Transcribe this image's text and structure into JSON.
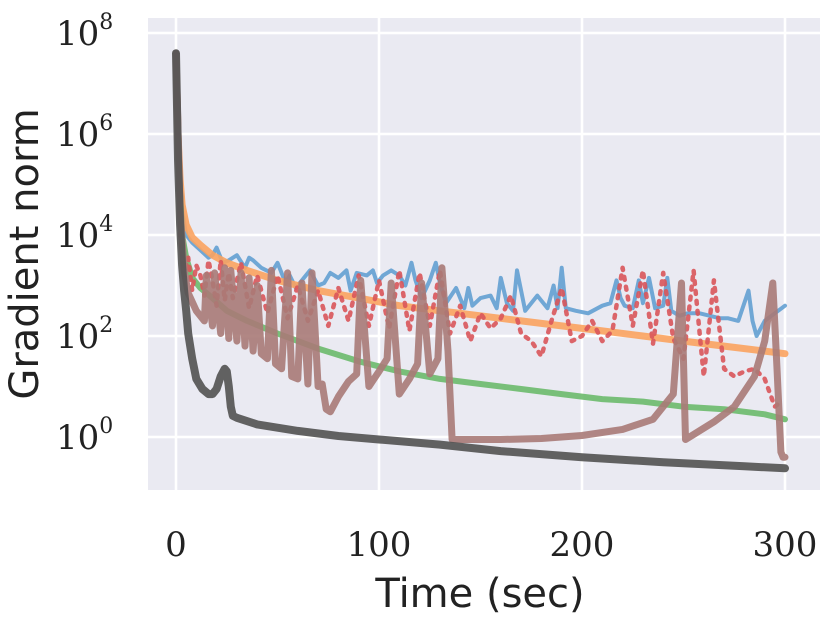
{
  "chart_data": {
    "type": "line",
    "title": "",
    "xlabel": "Time (sec)",
    "ylabel": "Gradient norm",
    "xlim": [
      -15,
      310
    ],
    "ylim_log10": [
      -1,
      8.3
    ],
    "yscale": "log",
    "grid": true,
    "background": "#eaeaf2",
    "x_ticks": [
      {
        "value": 0,
        "label": "0"
      },
      {
        "value": 100,
        "label": "100"
      },
      {
        "value": 200,
        "label": "200"
      },
      {
        "value": 300,
        "label": "300"
      }
    ],
    "y_ticks": [
      {
        "exponent": 0,
        "base": "10",
        "sup": "0"
      },
      {
        "exponent": 2,
        "base": "10",
        "sup": "2"
      },
      {
        "exponent": 4,
        "base": "10",
        "sup": "4"
      },
      {
        "exponent": 6,
        "base": "10",
        "sup": "6"
      },
      {
        "exponent": 8,
        "base": "10",
        "sup": "8"
      }
    ],
    "series": [
      {
        "name": "series-blue",
        "color": "#5b9bd0",
        "width": 4,
        "dash": "",
        "opacity": 0.85,
        "x": [
          0,
          1,
          2,
          3,
          5,
          8,
          12,
          16,
          18,
          20,
          23,
          26,
          30,
          34,
          36,
          38,
          42,
          47,
          50,
          54,
          56,
          59,
          63,
          66,
          70,
          73,
          76,
          80,
          84,
          86,
          89,
          94,
          97,
          99,
          102,
          106,
          110,
          113,
          116,
          118,
          121,
          125,
          128,
          130,
          133,
          138,
          142,
          144,
          146,
          150,
          155,
          158,
          160,
          163,
          166,
          168,
          172,
          178,
          183,
          186,
          188,
          190,
          192,
          197,
          203,
          210,
          214,
          217,
          219,
          221,
          225,
          228,
          230,
          233,
          236,
          240,
          242,
          244,
          248,
          252,
          258,
          263,
          268,
          272,
          277,
          282,
          284,
          286,
          290,
          295,
          300
        ],
        "y": [
          7.6,
          6.0,
          5.2,
          4.5,
          4.0,
          3.85,
          3.7,
          3.55,
          3.6,
          3.75,
          3.45,
          3.5,
          3.6,
          3.35,
          3.55,
          3.5,
          3.35,
          3.25,
          3.45,
          3.05,
          3.2,
          2.95,
          3.15,
          3.3,
          3.0,
          3.05,
          3.25,
          3.15,
          3.3,
          2.9,
          3.25,
          3.2,
          3.3,
          3.05,
          3.2,
          3.3,
          3.2,
          3.0,
          3.45,
          3.1,
          2.75,
          3.1,
          3.45,
          3.05,
          2.65,
          2.95,
          2.55,
          2.95,
          2.6,
          2.75,
          2.8,
          2.55,
          3.15,
          2.65,
          2.5,
          3.3,
          2.5,
          2.8,
          2.55,
          3.0,
          2.55,
          3.35,
          2.55,
          2.5,
          2.45,
          2.6,
          2.65,
          3.1,
          2.75,
          2.6,
          2.55,
          3.1,
          2.65,
          3.15,
          2.55,
          2.6,
          3.15,
          2.5,
          2.4,
          2.45,
          2.45,
          2.4,
          2.35,
          2.35,
          2.3,
          2.9,
          2.3,
          2.0,
          2.3,
          2.45,
          2.6
        ]
      },
      {
        "name": "series-orange",
        "color": "#fba35f",
        "width": 7,
        "dash": "",
        "opacity": 0.9,
        "x": [
          0,
          1,
          2,
          3,
          5,
          8,
          12,
          18,
          25,
          35,
          50,
          70,
          90,
          110,
          130,
          150,
          170,
          190,
          210,
          230,
          250,
          270,
          290,
          300
        ],
        "y": [
          7.6,
          6.0,
          5.1,
          4.6,
          4.2,
          3.95,
          3.8,
          3.6,
          3.45,
          3.3,
          3.1,
          2.9,
          2.75,
          2.6,
          2.5,
          2.4,
          2.3,
          2.2,
          2.1,
          2.0,
          1.9,
          1.8,
          1.7,
          1.65
        ]
      },
      {
        "name": "series-green",
        "color": "#6bba6b",
        "width": 6,
        "dash": "",
        "opacity": 0.9,
        "x": [
          0,
          1,
          2,
          3,
          5,
          8,
          12,
          18,
          25,
          35,
          50,
          70,
          90,
          110,
          130,
          150,
          170,
          190,
          210,
          230,
          250,
          270,
          290,
          300
        ],
        "y": [
          7.6,
          5.8,
          4.8,
          4.0,
          3.55,
          3.15,
          2.95,
          2.75,
          2.5,
          2.3,
          2.05,
          1.75,
          1.5,
          1.3,
          1.15,
          1.05,
          0.95,
          0.85,
          0.75,
          0.7,
          0.6,
          0.55,
          0.45,
          0.35
        ]
      },
      {
        "name": "series-red-dotted",
        "color": "#d9555a",
        "width": 4.5,
        "dash": "3 7",
        "opacity": 0.9,
        "x": [
          0,
          2,
          4,
          6,
          8,
          10,
          12,
          14,
          16,
          18,
          20,
          22,
          24,
          26,
          28,
          32,
          36,
          40,
          45,
          50,
          55,
          60,
          65,
          70,
          75,
          80,
          85,
          90,
          95,
          100,
          105,
          110,
          115,
          120,
          125,
          130,
          135,
          140,
          145,
          150,
          155,
          160,
          165,
          170,
          175,
          180,
          185,
          190,
          195,
          200,
          205,
          210,
          215,
          220,
          225,
          230,
          235,
          240,
          245,
          250,
          255,
          260,
          265,
          270,
          275,
          280,
          285,
          290,
          295,
          298
        ],
        "y": [
          7.6,
          4.0,
          3.2,
          3.55,
          2.9,
          3.4,
          3.2,
          2.8,
          3.5,
          3.1,
          2.6,
          3.5,
          2.7,
          3.25,
          2.75,
          3.45,
          2.55,
          3.2,
          2.45,
          3.2,
          2.35,
          3.0,
          2.3,
          2.9,
          2.2,
          2.95,
          2.3,
          3.2,
          2.2,
          3.1,
          2.15,
          3.3,
          2.1,
          3.25,
          2.2,
          3.3,
          2.05,
          2.6,
          1.9,
          2.45,
          2.15,
          2.35,
          2.8,
          2.05,
          1.9,
          1.6,
          2.3,
          2.95,
          1.9,
          2.0,
          2.3,
          1.9,
          2.1,
          3.35,
          2.2,
          3.3,
          1.85,
          3.25,
          1.95,
          1.55,
          3.3,
          1.2,
          3.1,
          1.35,
          1.2,
          1.3,
          1.35,
          1.15,
          0.6,
          0.7
        ]
      },
      {
        "name": "series-brown",
        "color": "#a87a77",
        "width": 7,
        "dash": "",
        "opacity": 0.9,
        "x": [
          0,
          2,
          4,
          6,
          10,
          14,
          15,
          18,
          19,
          22,
          24,
          26,
          27,
          30,
          32,
          34,
          36,
          38,
          40,
          42,
          45,
          47,
          49,
          52,
          55,
          57,
          60,
          62,
          65,
          67,
          70,
          72,
          74,
          76,
          80,
          85,
          89,
          91,
          95,
          100,
          104,
          106,
          110,
          115,
          119,
          121,
          125,
          129,
          131,
          134,
          136,
          138,
          145,
          160,
          180,
          200,
          220,
          235,
          245,
          249,
          251,
          255,
          265,
          275,
          285,
          290,
          294,
          296,
          298,
          299,
          300
        ],
        "y": [
          7.6,
          4.5,
          3.3,
          2.85,
          2.5,
          2.3,
          3.2,
          2.2,
          3.25,
          2.05,
          3.35,
          1.95,
          3.3,
          1.9,
          3.25,
          1.8,
          3.15,
          1.7,
          3.0,
          1.65,
          1.55,
          3.3,
          1.45,
          1.35,
          3.25,
          1.2,
          1.15,
          3.05,
          1.05,
          3.25,
          1.0,
          1.05,
          0.55,
          0.5,
          0.8,
          1.1,
          1.25,
          3.1,
          1.0,
          1.3,
          1.55,
          3.05,
          0.85,
          1.15,
          1.45,
          3.05,
          1.25,
          1.55,
          3.35,
          1.7,
          -0.05,
          -0.05,
          -0.05,
          -0.05,
          -0.03,
          0.03,
          0.15,
          0.35,
          0.85,
          3.05,
          -0.05,
          0.05,
          0.3,
          0.6,
          1.2,
          1.9,
          3.05,
          1.4,
          -0.3,
          -0.4,
          -0.4
        ]
      },
      {
        "name": "series-gray",
        "color": "#555555",
        "width": 8,
        "dash": "",
        "opacity": 0.92,
        "x": [
          0,
          1,
          2,
          3,
          4,
          5,
          6,
          8,
          10,
          13,
          16,
          18,
          20,
          22,
          24,
          25,
          26,
          27,
          28,
          30,
          40,
          60,
          80,
          100,
          130,
          160,
          200,
          240,
          280,
          300
        ],
        "y": [
          7.6,
          5.5,
          4.2,
          3.4,
          2.9,
          2.5,
          2.05,
          1.55,
          1.15,
          0.95,
          0.85,
          0.85,
          0.95,
          1.2,
          1.35,
          1.3,
          1.0,
          0.6,
          0.42,
          0.38,
          0.25,
          0.12,
          0.02,
          -0.05,
          -0.15,
          -0.28,
          -0.4,
          -0.5,
          -0.58,
          -0.62
        ]
      }
    ]
  }
}
